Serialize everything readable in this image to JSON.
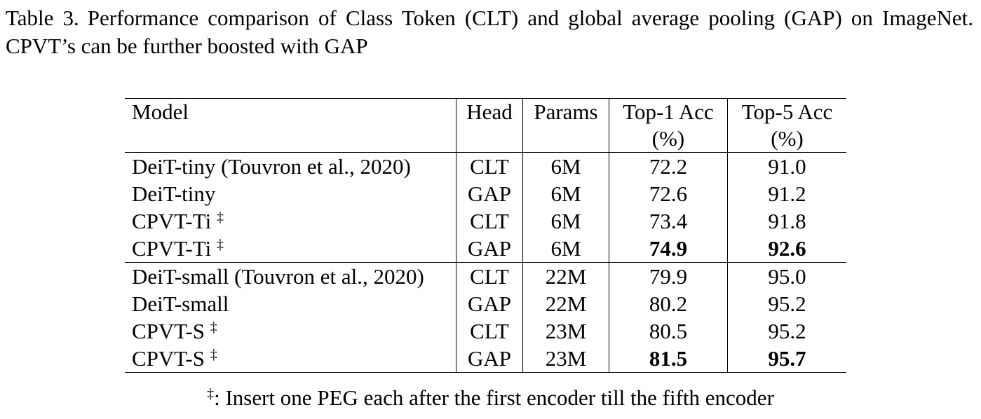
{
  "caption": {
    "label": "Table 3.",
    "text": "Performance comparison of Class Token (CLT) and global average pooling (GAP) on ImageNet. CPVT’s can be further boosted with GAP"
  },
  "table": {
    "header": [
      [
        "Model"
      ],
      [
        "Head"
      ],
      [
        "Params"
      ],
      [
        "Top-1 Acc",
        "(%)"
      ],
      [
        "Top-5 Acc",
        "(%)"
      ]
    ],
    "groups": [
      {
        "rows": [
          {
            "model": "DeiT-tiny (Touvron et al., 2020)",
            "head": "CLT",
            "params": "6M",
            "top1": "72.2",
            "top5": "91.0"
          },
          {
            "model": "DeiT-tiny",
            "head": "GAP",
            "params": "6M",
            "top1": "72.6",
            "top5": "91.2"
          },
          {
            "model": "CPVT-Ti",
            "mark": "‡",
            "head": "CLT",
            "params": "6M",
            "top1": "73.4",
            "top5": "91.8"
          },
          {
            "model": "CPVT-Ti",
            "mark": "‡",
            "head": "GAP",
            "params": "6M",
            "top1": "74.9",
            "top5": "92.6",
            "best": true
          }
        ]
      },
      {
        "rows": [
          {
            "model": "DeiT-small (Touvron et al., 2020)",
            "head": "CLT",
            "params": "22M",
            "top1": "79.9",
            "top5": "95.0"
          },
          {
            "model": "DeiT-small",
            "head": "GAP",
            "params": "22M",
            "top1": "80.2",
            "top5": "95.2"
          },
          {
            "model": "CPVT-S",
            "mark": "‡",
            "head": "CLT",
            "params": "23M",
            "top1": "80.5",
            "top5": "95.2"
          },
          {
            "model": "CPVT-S",
            "mark": "‡",
            "head": "GAP",
            "params": "23M",
            "top1": "81.5",
            "top5": "95.7",
            "best": true
          }
        ]
      }
    ]
  },
  "footnote": {
    "mark": "‡",
    "text": ": Insert one PEG each after the first encoder till the fifth encoder"
  }
}
